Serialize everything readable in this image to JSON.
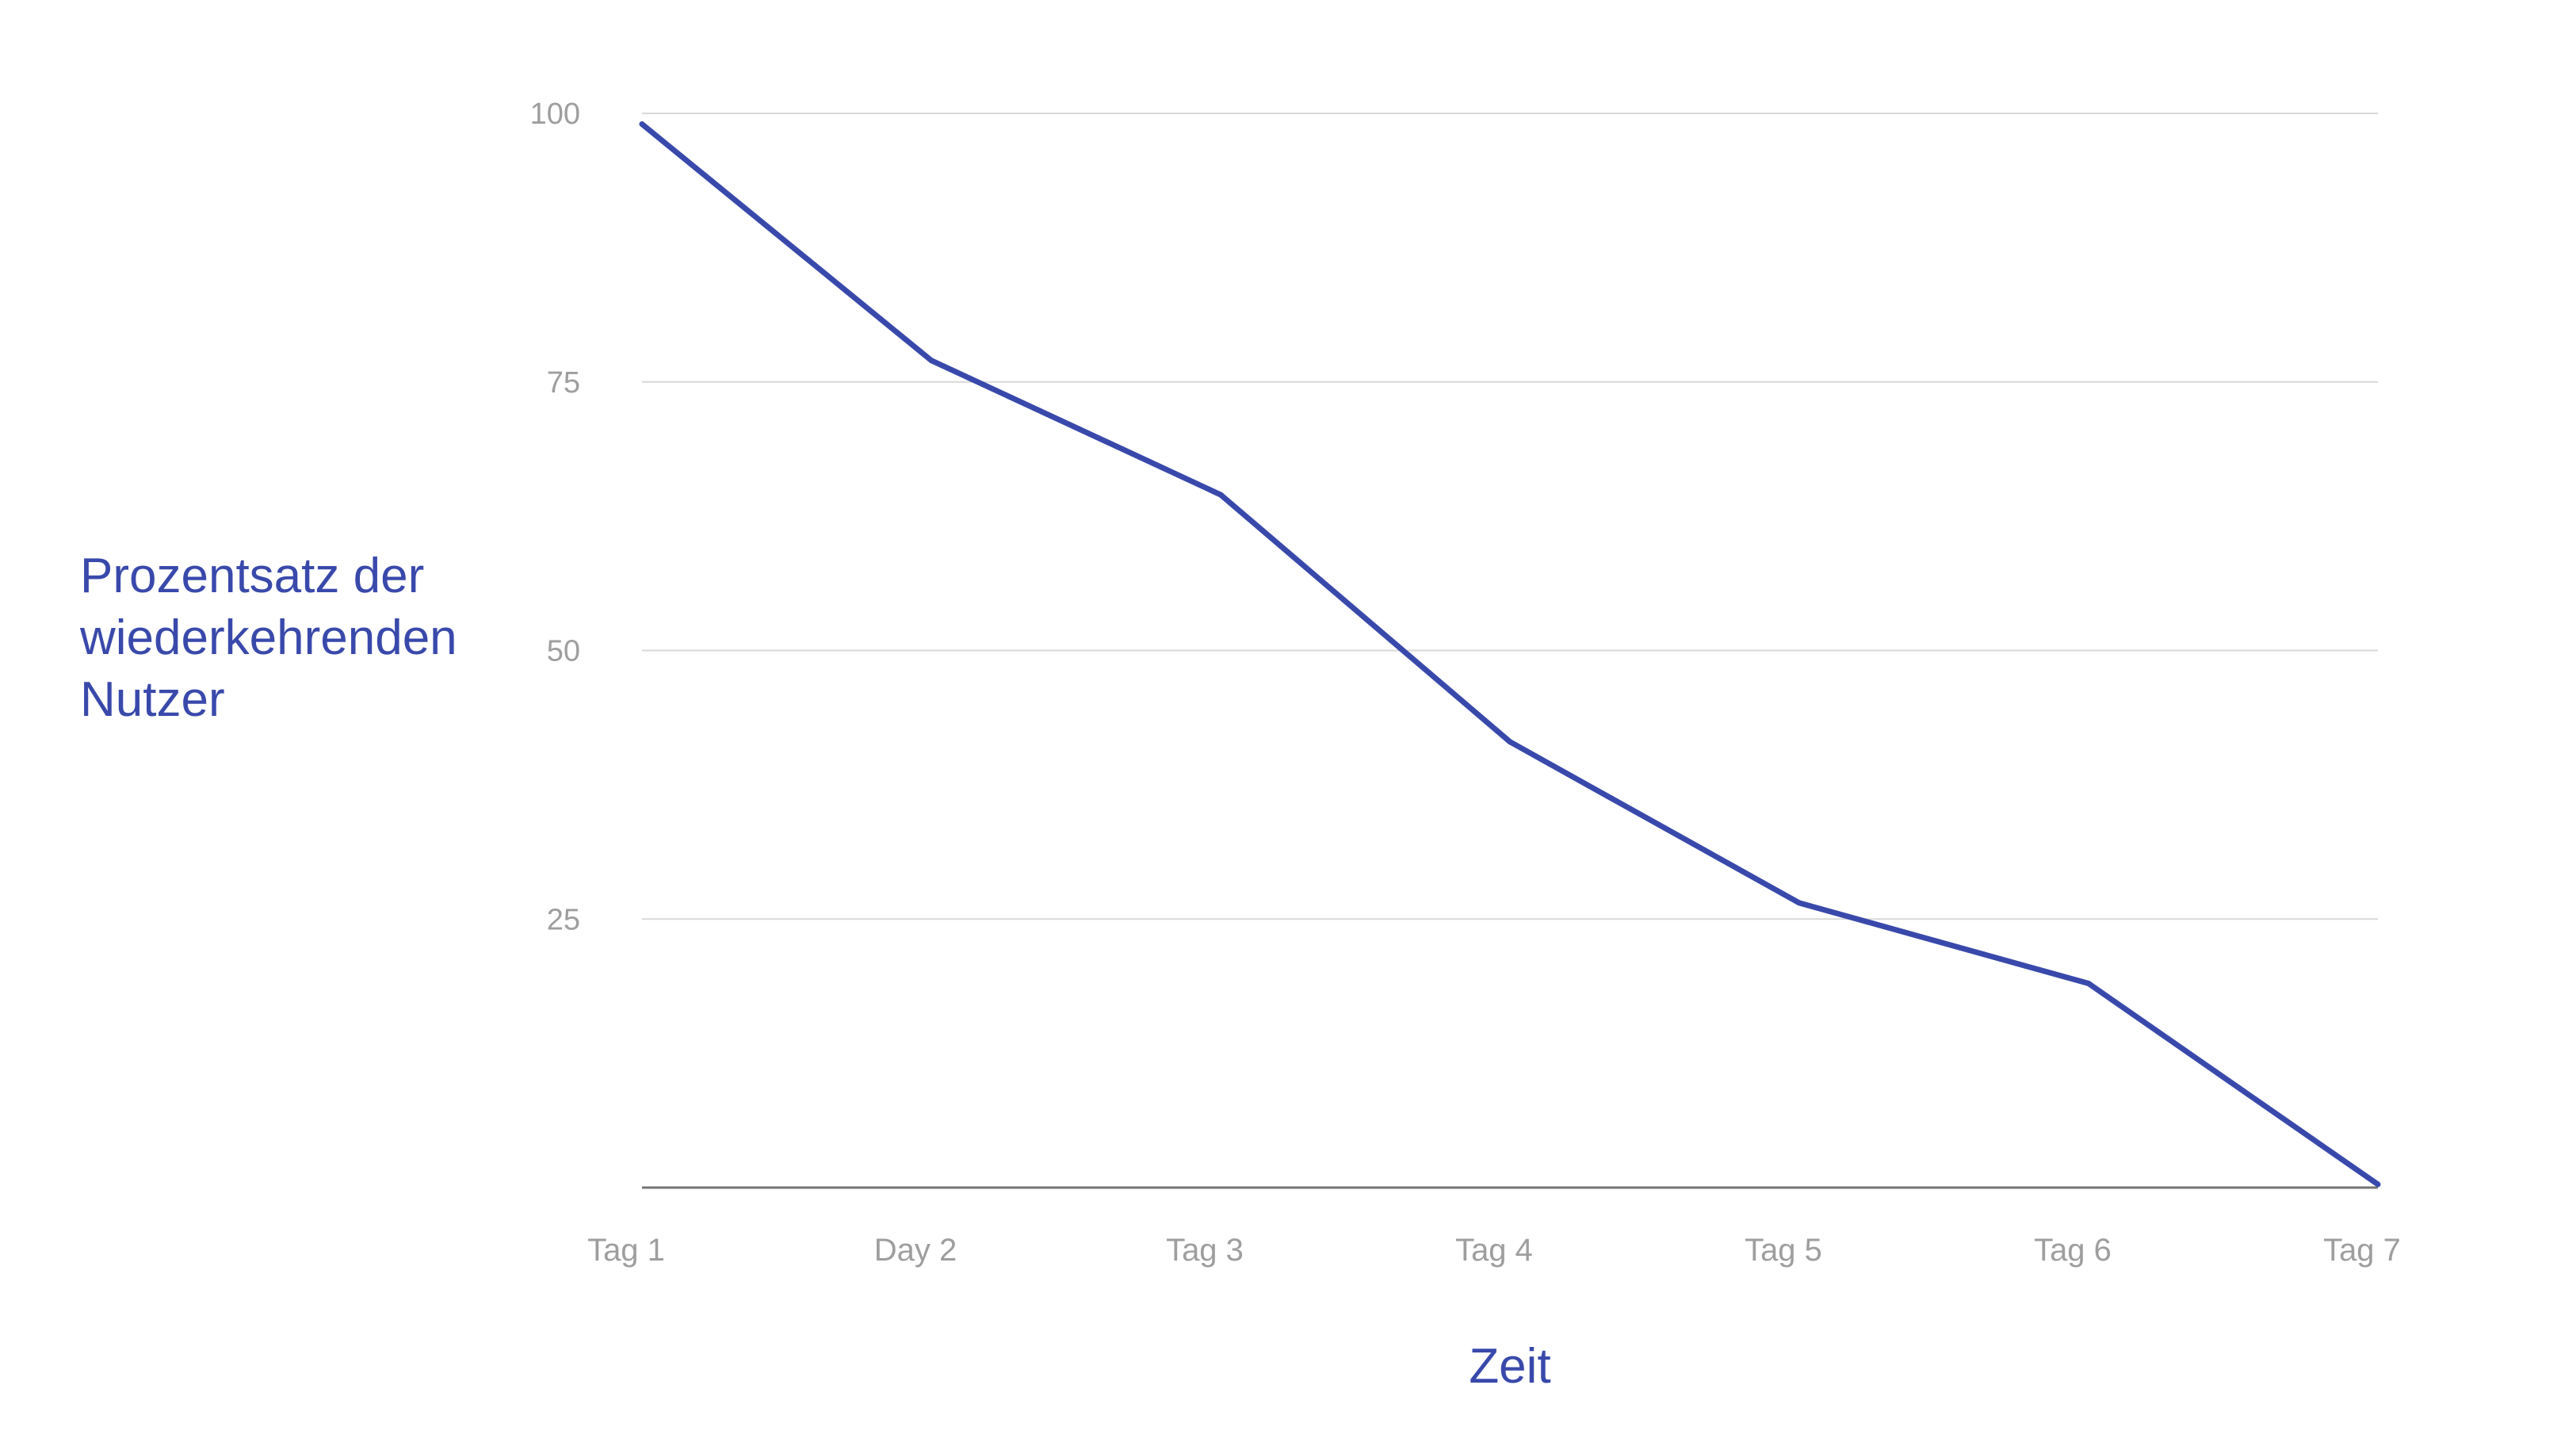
{
  "chart_data": {
    "type": "line",
    "title": "",
    "xlabel": "Zeit",
    "ylabel_lines": [
      "Prozentsatz der",
      "wiederkehrenden",
      "Nutzer"
    ],
    "categories": [
      "Tag 1",
      "Day 2",
      "Tag 3",
      "Tag 4",
      "Tag 5",
      "Tag 6",
      "Tag 7"
    ],
    "series": [
      {
        "values": [
          99,
          77,
          64.5,
          41.5,
          26.5,
          19,
          0.3
        ]
      }
    ],
    "ylim": [
      0,
      100
    ],
    "yticks": [
      25,
      50,
      75,
      100
    ],
    "grid": true,
    "legend": "none",
    "line_color": "#3949AB",
    "label_color": "#3949AB",
    "tick_color": "#9E9E9E",
    "grid_color": "#D9D9D9",
    "axis_color": "#757575"
  }
}
